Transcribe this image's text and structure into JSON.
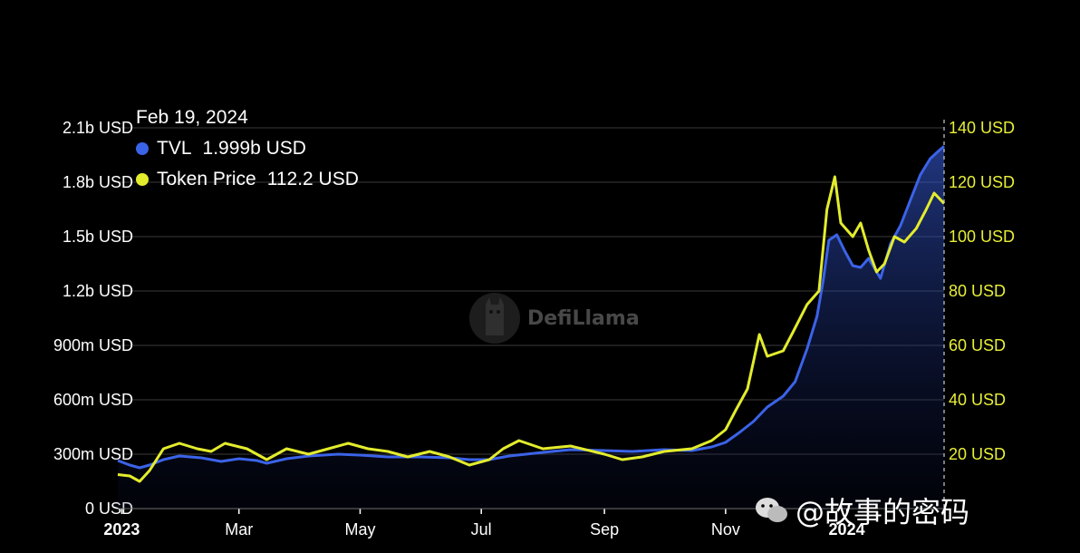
{
  "tooltip": {
    "date": "Feb 19, 2024",
    "tvl_label": "TVL",
    "tvl_value": "1.999b USD",
    "price_label": "Token Price",
    "price_value": "112.2 USD"
  },
  "watermark": {
    "text": "DefiLlama",
    "icon": "llama-logo-icon"
  },
  "credit": {
    "text": "@故事的密码",
    "icon": "wechat-icon"
  },
  "colors": {
    "tvl": "#3b63e8",
    "price": "#e3ec2c",
    "background": "#000000",
    "grid": "#3a3a3a"
  },
  "chart_data": {
    "type": "line",
    "title": "",
    "x_tick_labels": [
      "2023",
      "Mar",
      "May",
      "Jul",
      "Sep",
      "Nov",
      "2024"
    ],
    "y_left_tick_labels": [
      "0 USD",
      "300m USD",
      "600m USD",
      "900m USD",
      "1.2b USD",
      "1.5b USD",
      "1.8b USD",
      "2.1b USD"
    ],
    "y_right_tick_labels": [
      "20 USD",
      "40 USD",
      "60 USD",
      "80 USD",
      "100 USD",
      "120 USD",
      "140 USD"
    ],
    "y_left_range_musd": [
      0,
      2100
    ],
    "y_right_range_usd": [
      0,
      140
    ],
    "x_range": [
      "2022-12-30",
      "2024-02-19"
    ],
    "grid": true,
    "series": [
      {
        "name": "TVL",
        "axis": "left",
        "unit": "USD (millions)",
        "points": [
          [
            "2022-12-30",
            265
          ],
          [
            "2023-01-05",
            240
          ],
          [
            "2023-01-10",
            225
          ],
          [
            "2023-01-15",
            240
          ],
          [
            "2023-01-22",
            270
          ],
          [
            "2023-01-30",
            290
          ],
          [
            "2023-02-10",
            280
          ],
          [
            "2023-02-20",
            260
          ],
          [
            "2023-03-01",
            275
          ],
          [
            "2023-03-10",
            265
          ],
          [
            "2023-03-15",
            250
          ],
          [
            "2023-03-25",
            275
          ],
          [
            "2023-04-05",
            290
          ],
          [
            "2023-04-20",
            300
          ],
          [
            "2023-05-01",
            295
          ],
          [
            "2023-05-15",
            285
          ],
          [
            "2023-06-01",
            285
          ],
          [
            "2023-06-15",
            280
          ],
          [
            "2023-06-25",
            270
          ],
          [
            "2023-07-05",
            270
          ],
          [
            "2023-07-15",
            290
          ],
          [
            "2023-08-01",
            310
          ],
          [
            "2023-08-15",
            325
          ],
          [
            "2023-09-01",
            320
          ],
          [
            "2023-09-15",
            315
          ],
          [
            "2023-10-01",
            325
          ],
          [
            "2023-10-15",
            320
          ],
          [
            "2023-10-25",
            340
          ],
          [
            "2023-11-01",
            365
          ],
          [
            "2023-11-08",
            420
          ],
          [
            "2023-11-15",
            480
          ],
          [
            "2023-11-22",
            560
          ],
          [
            "2023-11-30",
            620
          ],
          [
            "2023-12-06",
            700
          ],
          [
            "2023-12-12",
            880
          ],
          [
            "2023-12-17",
            1060
          ],
          [
            "2023-12-20",
            1250
          ],
          [
            "2023-12-23",
            1480
          ],
          [
            "2023-12-27",
            1510
          ],
          [
            "2023-12-31",
            1420
          ],
          [
            "2024-01-04",
            1340
          ],
          [
            "2024-01-08",
            1330
          ],
          [
            "2024-01-12",
            1380
          ],
          [
            "2024-01-18",
            1270
          ],
          [
            "2024-01-23",
            1460
          ],
          [
            "2024-01-28",
            1560
          ],
          [
            "2024-02-02",
            1700
          ],
          [
            "2024-02-07",
            1840
          ],
          [
            "2024-02-12",
            1930
          ],
          [
            "2024-02-16",
            1970
          ],
          [
            "2024-02-19",
            1999
          ]
        ]
      },
      {
        "name": "Token Price",
        "axis": "right",
        "unit": "USD",
        "points": [
          [
            "2022-12-30",
            12.5
          ],
          [
            "2023-01-05",
            12
          ],
          [
            "2023-01-10",
            10
          ],
          [
            "2023-01-15",
            14
          ],
          [
            "2023-01-22",
            22
          ],
          [
            "2023-01-30",
            24
          ],
          [
            "2023-02-08",
            22
          ],
          [
            "2023-02-15",
            21
          ],
          [
            "2023-02-22",
            24
          ],
          [
            "2023-03-05",
            22
          ],
          [
            "2023-03-15",
            18
          ],
          [
            "2023-03-25",
            22
          ],
          [
            "2023-04-05",
            20
          ],
          [
            "2023-04-15",
            22
          ],
          [
            "2023-04-25",
            24
          ],
          [
            "2023-05-05",
            22
          ],
          [
            "2023-05-15",
            21
          ],
          [
            "2023-05-25",
            19
          ],
          [
            "2023-06-05",
            21
          ],
          [
            "2023-06-15",
            19
          ],
          [
            "2023-06-25",
            16
          ],
          [
            "2023-07-05",
            18
          ],
          [
            "2023-07-12",
            22
          ],
          [
            "2023-07-20",
            25
          ],
          [
            "2023-08-01",
            22
          ],
          [
            "2023-08-15",
            23
          ],
          [
            "2023-09-01",
            20
          ],
          [
            "2023-09-10",
            18
          ],
          [
            "2023-09-20",
            19
          ],
          [
            "2023-10-01",
            21
          ],
          [
            "2023-10-15",
            22
          ],
          [
            "2023-10-25",
            25
          ],
          [
            "2023-11-01",
            29
          ],
          [
            "2023-11-06",
            36
          ],
          [
            "2023-11-12",
            44
          ],
          [
            "2023-11-18",
            64
          ],
          [
            "2023-11-22",
            56
          ],
          [
            "2023-11-30",
            58
          ],
          [
            "2023-12-05",
            65
          ],
          [
            "2023-12-12",
            75
          ],
          [
            "2023-12-18",
            80
          ],
          [
            "2023-12-22",
            110
          ],
          [
            "2023-12-26",
            122
          ],
          [
            "2023-12-29",
            105
          ],
          [
            "2024-01-04",
            100
          ],
          [
            "2024-01-08",
            105
          ],
          [
            "2024-01-12",
            95
          ],
          [
            "2024-01-16",
            87
          ],
          [
            "2024-01-20",
            90
          ],
          [
            "2024-01-25",
            100
          ],
          [
            "2024-01-30",
            98
          ],
          [
            "2024-02-05",
            103
          ],
          [
            "2024-02-10",
            110
          ],
          [
            "2024-02-14",
            116
          ],
          [
            "2024-02-19",
            112.2
          ]
        ]
      }
    ]
  }
}
